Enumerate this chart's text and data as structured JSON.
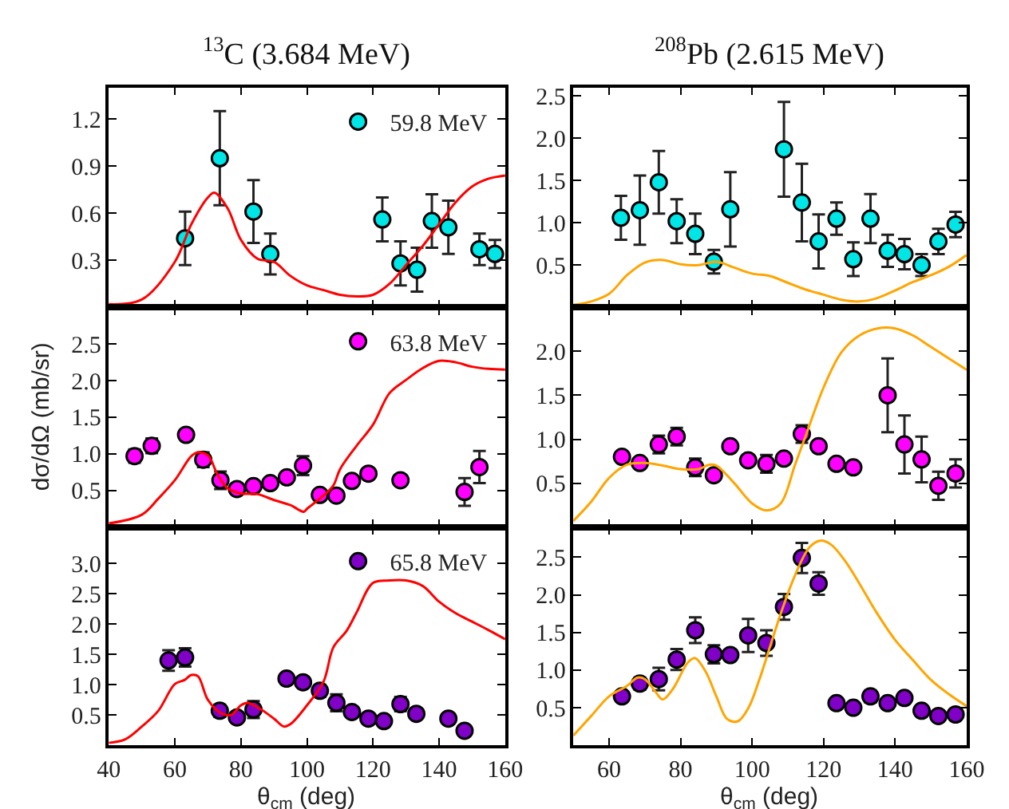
{
  "chart_data": [
    {
      "type": "scatter",
      "title": "$^{13}$C (3.684 MeV)",
      "xlim": [
        40,
        160
      ],
      "xticks": [
        40,
        60,
        80,
        100,
        120,
        140,
        160
      ],
      "ylim": [
        0,
        1.4
      ],
      "yticks": [
        {
          "value": 0.3,
          "label": "0.3"
        },
        {
          "value": 0.6,
          "label": "0.6"
        },
        {
          "value": 0.9,
          "label": "0.9"
        },
        {
          "value": 1.2,
          "label": "1.2"
        }
      ],
      "tick_labels": "y",
      "legend": "top right",
      "series": [
        {
          "type": "scatter",
          "marker": "circle",
          "name": "59.8 MeV",
          "color": "#00e5e5",
          "x": [
            63.1,
            73.6,
            83.8,
            88.9,
            122.8,
            128.3,
            133.3,
            137.8,
            142.8,
            152.2,
            156.9
          ],
          "values": [
            0.44,
            0.95,
            0.61,
            0.34,
            0.56,
            0.28,
            0.24,
            0.55,
            0.51,
            0.37,
            0.34
          ],
          "errors": [
            0.17,
            0.3,
            0.2,
            0.13,
            0.14,
            0.14,
            0.14,
            0.17,
            0.17,
            0.1,
            0.09
          ]
        },
        {
          "type": "line",
          "color": "#ff0000",
          "x": [
            40,
            50,
            60,
            65,
            70,
            72,
            76,
            80,
            85,
            90,
            95,
            100,
            105,
            110,
            115,
            120,
            125,
            130,
            135,
            140,
            145,
            150,
            155,
            160
          ],
          "values": [
            0.02,
            0.05,
            0.29,
            0.53,
            0.7,
            0.73,
            0.63,
            0.43,
            0.31,
            0.29,
            0.2,
            0.14,
            0.11,
            0.08,
            0.07,
            0.08,
            0.15,
            0.27,
            0.39,
            0.53,
            0.67,
            0.77,
            0.82,
            0.84
          ]
        }
      ]
    },
    {
      "type": "scatter",
      "title": "$^{208}$Pb (2.615 MeV)",
      "xlim": [
        50,
        160
      ],
      "xticks": [
        60,
        80,
        100,
        120,
        140,
        160
      ],
      "ylim": [
        0,
        2.6
      ],
      "yticks": [
        {
          "value": 0.5,
          "label": "0.5"
        },
        {
          "value": 1,
          "label": "1.0"
        },
        {
          "value": 1.5,
          "label": "1.5"
        },
        {
          "value": 2,
          "label": "2.0"
        },
        {
          "value": 2.5,
          "label": "2.5"
        }
      ],
      "tick_labels": "y",
      "series": [
        {
          "type": "scatter",
          "marker": "circle",
          "color": "#00e5e5",
          "x": [
            63.3,
            68.6,
            73.9,
            78.9,
            84.1,
            89.3,
            93.9,
            108.9,
            113.9,
            118.6,
            123.6,
            128.3,
            133.1,
            137.9,
            142.6,
            147.4,
            152.1,
            156.9
          ],
          "values": [
            1.06,
            1.15,
            1.48,
            1.02,
            0.87,
            0.54,
            1.16,
            1.87,
            1.24,
            0.78,
            1.05,
            0.57,
            1.05,
            0.67,
            0.63,
            0.5,
            0.78,
            0.98
          ],
          "errors": [
            0.26,
            0.41,
            0.37,
            0.26,
            0.24,
            0.14,
            0.44,
            0.56,
            0.46,
            0.32,
            0.19,
            0.2,
            0.29,
            0.19,
            0.18,
            0.13,
            0.15,
            0.15
          ]
        },
        {
          "type": "line",
          "color": "#ffa500",
          "x": [
            50,
            55,
            60,
            65,
            70,
            75,
            80,
            85,
            90,
            95,
            100,
            105,
            110,
            115,
            120,
            125,
            130,
            135,
            140,
            145,
            150,
            155,
            160
          ],
          "values": [
            0.03,
            0.07,
            0.16,
            0.38,
            0.53,
            0.56,
            0.51,
            0.5,
            0.54,
            0.47,
            0.4,
            0.37,
            0.29,
            0.21,
            0.15,
            0.09,
            0.07,
            0.11,
            0.2,
            0.3,
            0.38,
            0.48,
            0.62
          ]
        }
      ]
    },
    {
      "type": "scatter",
      "ylabel": "dσ/dΩ (mb/sr)",
      "xlim": [
        40,
        160
      ],
      "xticks": [
        40,
        60,
        80,
        100,
        120,
        140,
        160
      ],
      "ylim": [
        0,
        3.0
      ],
      "yticks": [
        {
          "value": 0.5,
          "label": "0.5"
        },
        {
          "value": 1,
          "label": "1.0"
        },
        {
          "value": 1.5,
          "label": "1.5"
        },
        {
          "value": 2,
          "label": "2.0"
        },
        {
          "value": 2.5,
          "label": "2.5"
        }
      ],
      "tick_labels": "y",
      "legend": "top right",
      "series": [
        {
          "type": "scatter",
          "marker": "circle",
          "name": "63.8 MeV",
          "color": "#ff00ff",
          "x": [
            47.8,
            53.0,
            63.4,
            68.6,
            73.8,
            78.8,
            83.8,
            88.9,
            93.9,
            98.8,
            103.9,
            108.9,
            113.6,
            118.6,
            128.3,
            147.7,
            152.2
          ],
          "values": [
            0.97,
            1.11,
            1.26,
            0.92,
            0.64,
            0.52,
            0.56,
            0.6,
            0.68,
            0.84,
            0.44,
            0.43,
            0.63,
            0.73,
            0.64,
            0.48,
            0.82
          ],
          "errors": [
            0.09,
            0.1,
            0.05,
            0.1,
            0.12,
            null,
            null,
            null,
            null,
            0.13,
            null,
            null,
            null,
            null,
            null,
            0.19,
            0.22
          ]
        },
        {
          "type": "line",
          "color": "#ff0000",
          "x": [
            40,
            50,
            55,
            60,
            65,
            67,
            70,
            73,
            76,
            80,
            85,
            90,
            95,
            99,
            100,
            105,
            108,
            110,
            115,
            120,
            125,
            130,
            135,
            140,
            145,
            150,
            155,
            160
          ],
          "values": [
            0.05,
            0.17,
            0.39,
            0.64,
            0.97,
            1.02,
            0.98,
            0.71,
            0.53,
            0.46,
            0.45,
            0.37,
            0.3,
            0.21,
            0.25,
            0.43,
            0.57,
            0.79,
            1.11,
            1.4,
            1.83,
            2.01,
            2.17,
            2.27,
            2.25,
            2.19,
            2.16,
            2.15
          ]
        }
      ]
    },
    {
      "type": "scatter",
      "xlim": [
        50,
        160
      ],
      "xticks": [
        60,
        80,
        100,
        120,
        140,
        160
      ],
      "ylim": [
        0,
        2.5
      ],
      "yticks": [
        {
          "value": 0.5,
          "label": "0.5"
        },
        {
          "value": 1,
          "label": "1.0"
        },
        {
          "value": 1.5,
          "label": "1.5"
        },
        {
          "value": 2,
          "label": "2.0"
        }
      ],
      "tick_labels": "y",
      "series": [
        {
          "type": "scatter",
          "marker": "circle",
          "color": "#ff00ff",
          "x": [
            63.6,
            68.6,
            73.9,
            78.9,
            84.1,
            89.3,
            93.9,
            98.9,
            104.0,
            108.9,
            113.9,
            118.6,
            123.6,
            128.3,
            137.9,
            142.6,
            147.4,
            152.1,
            156.9
          ],
          "values": [
            0.8,
            0.73,
            0.94,
            1.03,
            0.68,
            0.59,
            0.92,
            0.76,
            0.72,
            0.78,
            1.06,
            0.92,
            0.72,
            0.68,
            1.5,
            0.94,
            0.77,
            0.47,
            0.61
          ],
          "errors": [
            null,
            0.04,
            0.1,
            0.1,
            0.1,
            0.04,
            0.04,
            null,
            0.1,
            null,
            0.1,
            null,
            0.04,
            0.04,
            0.42,
            0.33,
            0.26,
            0.16,
            0.16
          ]
        },
        {
          "type": "line",
          "color": "#ffa500",
          "x": [
            50,
            55,
            60,
            65,
            70,
            75,
            80,
            85,
            88,
            90,
            95,
            100,
            104,
            108,
            112,
            115,
            120,
            125,
            130,
            135,
            140,
            145,
            150,
            155,
            160
          ],
          "values": [
            0.07,
            0.29,
            0.56,
            0.71,
            0.73,
            0.7,
            0.66,
            0.66,
            0.71,
            0.7,
            0.5,
            0.27,
            0.19,
            0.27,
            0.71,
            1.04,
            1.59,
            1.99,
            2.18,
            2.26,
            2.26,
            2.18,
            2.05,
            1.92,
            1.79
          ]
        }
      ]
    },
    {
      "type": "scatter",
      "xlabel": "θ$_{cm}$ (deg)",
      "xlim": [
        40,
        160
      ],
      "xticks": [
        40,
        60,
        80,
        100,
        120,
        140,
        160
      ],
      "ylim": [
        0,
        3.6
      ],
      "yticks": [
        {
          "value": 0.5,
          "label": "0.5"
        },
        {
          "value": 1,
          "label": "1.0"
        },
        {
          "value": 1.5,
          "label": "1.5"
        },
        {
          "value": 2,
          "label": "2.0"
        },
        {
          "value": 2.5,
          "label": "2.5"
        },
        {
          "value": 3,
          "label": "3.0"
        }
      ],
      "legend": "top right",
      "series": [
        {
          "type": "scatter",
          "marker": "circle",
          "name": "65.8 MeV",
          "color": "#8000c8",
          "x": [
            58.1,
            63.1,
            73.6,
            78.8,
            83.8,
            93.8,
            98.8,
            103.9,
            108.9,
            113.6,
            118.6,
            123.3,
            128.3,
            133.1,
            142.8,
            147.7
          ],
          "values": [
            1.4,
            1.45,
            0.57,
            0.46,
            0.59,
            1.1,
            1.04,
            0.9,
            0.7,
            0.55,
            0.44,
            0.4,
            0.68,
            0.52,
            0.44,
            0.24
          ],
          "errors": [
            0.17,
            0.15,
            0.1,
            null,
            0.14,
            null,
            null,
            0.1,
            0.14,
            null,
            0.03,
            0.03,
            0.12,
            null,
            null,
            0.03
          ]
        },
        {
          "type": "line",
          "color": "#ff0000",
          "x": [
            40,
            45,
            50,
            55,
            60,
            63,
            65,
            67,
            70,
            74,
            77,
            80,
            82,
            85,
            90,
            93,
            95,
            100,
            105,
            108,
            112,
            115,
            120,
            125,
            130,
            135,
            140,
            145,
            150,
            155,
            160
          ],
          "values": [
            0.04,
            0.1,
            0.31,
            0.57,
            1.01,
            1.08,
            1.16,
            1.14,
            0.75,
            0.53,
            0.5,
            0.66,
            0.7,
            0.63,
            0.44,
            0.31,
            0.35,
            0.66,
            1.05,
            1.62,
            1.89,
            2.19,
            2.68,
            2.72,
            2.72,
            2.63,
            2.37,
            2.18,
            2.04,
            1.9,
            1.75
          ]
        }
      ]
    },
    {
      "type": "scatter",
      "xlabel": "θ$_{cm}$ (deg)",
      "xlim": [
        50,
        160
      ],
      "xticks": [
        60,
        80,
        100,
        120,
        140,
        160
      ],
      "ylim": [
        0,
        2.9
      ],
      "yticks": [
        {
          "value": 0.5,
          "label": "0.5"
        },
        {
          "value": 1,
          "label": "1.0"
        },
        {
          "value": 1.5,
          "label": "1.5"
        },
        {
          "value": 2,
          "label": "2.0"
        },
        {
          "value": 2.5,
          "label": "2.5"
        }
      ],
      "series": [
        {
          "type": "scatter",
          "marker": "circle",
          "color": "#8000c8",
          "x": [
            63.6,
            68.6,
            73.9,
            78.9,
            84.1,
            89.3,
            93.9,
            98.9,
            104.0,
            108.9,
            113.9,
            118.6,
            123.6,
            128.3,
            133.1,
            137.9,
            142.6,
            147.4,
            152.1,
            156.9
          ],
          "values": [
            0.65,
            0.82,
            0.88,
            1.14,
            1.53,
            1.21,
            1.2,
            1.46,
            1.36,
            1.84,
            2.49,
            2.15,
            0.56,
            0.5,
            0.65,
            0.56,
            0.63,
            0.46,
            0.39,
            0.41
          ],
          "errors": [
            0.05,
            0.08,
            0.15,
            0.14,
            0.17,
            0.12,
            0.05,
            0.22,
            0.17,
            0.17,
            0.2,
            0.15,
            0.03,
            0.03,
            0.08,
            0.05,
            null,
            0.05,
            null,
            0.04
          ]
        },
        {
          "type": "line",
          "color": "#ffa500",
          "x": [
            50,
            55,
            60,
            65,
            68,
            70,
            73,
            75,
            78,
            82,
            84,
            87,
            90,
            93,
            96,
            99,
            102,
            105,
            108,
            112,
            116,
            119,
            122,
            126,
            130,
            135,
            140,
            145,
            150,
            155,
            160
          ],
          "values": [
            0.13,
            0.39,
            0.65,
            0.79,
            0.9,
            0.88,
            0.71,
            0.61,
            0.76,
            1.1,
            1.16,
            0.98,
            0.65,
            0.35,
            0.32,
            0.5,
            0.87,
            1.31,
            1.75,
            2.26,
            2.63,
            2.72,
            2.67,
            2.45,
            2.15,
            1.75,
            1.4,
            1.13,
            0.87,
            0.68,
            0.52
          ]
        }
      ]
    }
  ]
}
